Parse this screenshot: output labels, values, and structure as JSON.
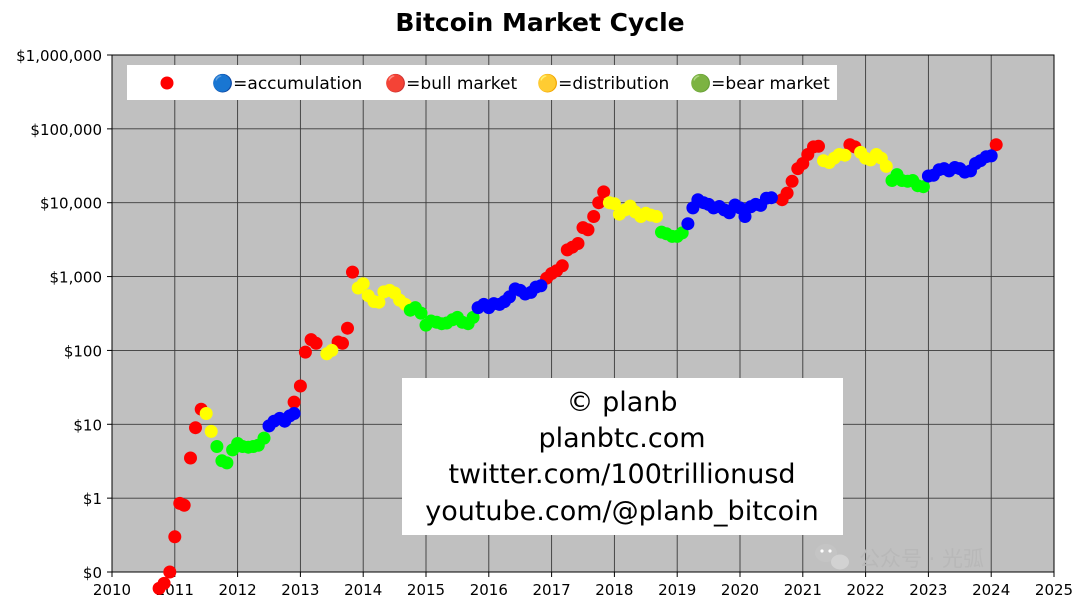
{
  "chart_data": {
    "type": "scatter",
    "title": "Bitcoin Market Cycle",
    "xlabel": "",
    "ylabel": "",
    "x_scale": "linear",
    "y_scale": "log",
    "xlim": [
      2010,
      2025
    ],
    "ylim": [
      0.1,
      1000000
    ],
    "grid": true,
    "x_ticks": [
      {
        "value": 2010,
        "label": "2010"
      },
      {
        "value": 2011,
        "label": "2011"
      },
      {
        "value": 2012,
        "label": "2012"
      },
      {
        "value": 2013,
        "label": "2013"
      },
      {
        "value": 2014,
        "label": "2014"
      },
      {
        "value": 2015,
        "label": "2015"
      },
      {
        "value": 2016,
        "label": "2016"
      },
      {
        "value": 2017,
        "label": "2017"
      },
      {
        "value": 2018,
        "label": "2018"
      },
      {
        "value": 2019,
        "label": "2019"
      },
      {
        "value": 2020,
        "label": "2020"
      },
      {
        "value": 2021,
        "label": "2021"
      },
      {
        "value": 2022,
        "label": "2022"
      },
      {
        "value": 2023,
        "label": "2023"
      },
      {
        "value": 2024,
        "label": "2024"
      },
      {
        "value": 2025,
        "label": "2025"
      }
    ],
    "y_ticks": [
      {
        "value": 0.1,
        "label": "$0"
      },
      {
        "value": 1,
        "label": "$1"
      },
      {
        "value": 10,
        "label": "$10"
      },
      {
        "value": 100,
        "label": "$100"
      },
      {
        "value": 1000,
        "label": "$1,000"
      },
      {
        "value": 10000,
        "label": "$10,000"
      },
      {
        "value": 100000,
        "label": "$100,000"
      },
      {
        "value": 1000000,
        "label": "$1,000,000"
      }
    ],
    "legend": {
      "placement": "top-left",
      "entries": [
        {
          "label": "",
          "color": "#ff0000"
        },
        {
          "label": "🔵=accumulation",
          "color": "#0000ff"
        },
        {
          "label": "🔴=bull market",
          "color": "#ff0000"
        },
        {
          "label": "🟡=distribution",
          "color": "#ffff00"
        },
        {
          "label": "🟢=bear market",
          "color": "#00ff00"
        }
      ]
    },
    "series": [
      {
        "phase": "bull",
        "color": "#ff0000",
        "points": [
          [
            2010.75,
            0.06
          ],
          [
            2010.83,
            0.07
          ],
          [
            2010.92,
            0.1
          ],
          [
            2011.0,
            0.3
          ],
          [
            2011.08,
            0.85
          ],
          [
            2011.15,
            0.8
          ],
          [
            2011.25,
            3.5
          ],
          [
            2011.33,
            9
          ],
          [
            2011.42,
            16
          ],
          [
            2012.9,
            20
          ],
          [
            2013.0,
            33
          ],
          [
            2013.08,
            95
          ],
          [
            2013.17,
            140
          ],
          [
            2013.25,
            125
          ],
          [
            2013.6,
            130
          ],
          [
            2013.67,
            125
          ],
          [
            2013.75,
            200
          ],
          [
            2013.83,
            1150
          ],
          [
            2016.92,
            950
          ],
          [
            2017.0,
            1100
          ],
          [
            2017.08,
            1200
          ],
          [
            2017.17,
            1400
          ],
          [
            2017.25,
            2300
          ],
          [
            2017.33,
            2500
          ],
          [
            2017.42,
            2800
          ],
          [
            2017.5,
            4600
          ],
          [
            2017.58,
            4300
          ],
          [
            2017.67,
            6500
          ],
          [
            2017.75,
            10000
          ],
          [
            2017.83,
            14000
          ],
          [
            2020.67,
            11000
          ],
          [
            2020.75,
            13500
          ],
          [
            2020.83,
            19500
          ],
          [
            2020.92,
            29000
          ],
          [
            2021.0,
            34000
          ],
          [
            2021.08,
            45000
          ],
          [
            2021.17,
            57000
          ],
          [
            2021.25,
            58000
          ],
          [
            2021.75,
            61000
          ],
          [
            2021.83,
            57000
          ],
          [
            2024.08,
            61000
          ]
        ]
      },
      {
        "phase": "distribution",
        "color": "#ffff00",
        "points": [
          [
            2011.5,
            14
          ],
          [
            2011.58,
            8
          ],
          [
            2013.42,
            90
          ],
          [
            2013.5,
            100
          ],
          [
            2013.92,
            700
          ],
          [
            2014.0,
            800
          ],
          [
            2014.08,
            550
          ],
          [
            2014.17,
            460
          ],
          [
            2014.25,
            450
          ],
          [
            2014.33,
            620
          ],
          [
            2014.42,
            650
          ],
          [
            2014.5,
            600
          ],
          [
            2014.58,
            480
          ],
          [
            2014.67,
            420
          ],
          [
            2017.92,
            10000
          ],
          [
            2018.0,
            9700
          ],
          [
            2018.08,
            7000
          ],
          [
            2018.17,
            8000
          ],
          [
            2018.25,
            9000
          ],
          [
            2018.33,
            7500
          ],
          [
            2018.42,
            6500
          ],
          [
            2018.5,
            7200
          ],
          [
            2018.58,
            6800
          ],
          [
            2018.67,
            6500
          ],
          [
            2021.33,
            37000
          ],
          [
            2021.42,
            35000
          ],
          [
            2021.5,
            40000
          ],
          [
            2021.58,
            45000
          ],
          [
            2021.67,
            44000
          ],
          [
            2021.92,
            48000
          ],
          [
            2022.0,
            40000
          ],
          [
            2022.08,
            38000
          ],
          [
            2022.17,
            45000
          ],
          [
            2022.25,
            40000
          ],
          [
            2022.33,
            31000
          ]
        ]
      },
      {
        "phase": "bear",
        "color": "#00ff00",
        "points": [
          [
            2011.67,
            5
          ],
          [
            2011.75,
            3.2
          ],
          [
            2011.83,
            3
          ],
          [
            2011.92,
            4.5
          ],
          [
            2012.0,
            5.5
          ],
          [
            2012.08,
            5
          ],
          [
            2012.17,
            4.9
          ],
          [
            2012.25,
            5
          ],
          [
            2012.33,
            5.2
          ],
          [
            2012.42,
            6.5
          ],
          [
            2014.75,
            350
          ],
          [
            2014.83,
            380
          ],
          [
            2014.92,
            320
          ],
          [
            2015.0,
            220
          ],
          [
            2015.08,
            250
          ],
          [
            2015.17,
            240
          ],
          [
            2015.25,
            230
          ],
          [
            2015.33,
            235
          ],
          [
            2015.42,
            260
          ],
          [
            2015.5,
            280
          ],
          [
            2015.58,
            240
          ],
          [
            2015.67,
            230
          ],
          [
            2015.75,
            280
          ],
          [
            2018.75,
            4000
          ],
          [
            2018.83,
            3800
          ],
          [
            2018.92,
            3500
          ],
          [
            2019.0,
            3500
          ],
          [
            2019.08,
            3900
          ],
          [
            2022.42,
            20000
          ],
          [
            2022.5,
            24000
          ],
          [
            2022.58,
            20000
          ],
          [
            2022.67,
            19500
          ],
          [
            2022.75,
            20000
          ],
          [
            2022.83,
            17000
          ],
          [
            2022.92,
            16500
          ]
        ]
      },
      {
        "phase": "accumulation",
        "color": "#0000ff",
        "points": [
          [
            2012.5,
            9.5
          ],
          [
            2012.58,
            11
          ],
          [
            2012.67,
            12
          ],
          [
            2012.75,
            11
          ],
          [
            2012.83,
            13
          ],
          [
            2012.9,
            14
          ],
          [
            2015.83,
            380
          ],
          [
            2015.92,
            420
          ],
          [
            2016.0,
            380
          ],
          [
            2016.08,
            430
          ],
          [
            2016.17,
            420
          ],
          [
            2016.25,
            460
          ],
          [
            2016.33,
            530
          ],
          [
            2016.42,
            680
          ],
          [
            2016.5,
            650
          ],
          [
            2016.58,
            580
          ],
          [
            2016.67,
            610
          ],
          [
            2016.75,
            720
          ],
          [
            2016.83,
            750
          ],
          [
            2019.17,
            5200
          ],
          [
            2019.25,
            8500
          ],
          [
            2019.33,
            11000
          ],
          [
            2019.42,
            10000
          ],
          [
            2019.5,
            9500
          ],
          [
            2019.58,
            8500
          ],
          [
            2019.67,
            8900
          ],
          [
            2019.75,
            8000
          ],
          [
            2019.83,
            7300
          ],
          [
            2019.92,
            9300
          ],
          [
            2020.0,
            8500
          ],
          [
            2020.08,
            6500
          ],
          [
            2020.17,
            8800
          ],
          [
            2020.25,
            9500
          ],
          [
            2020.33,
            9200
          ],
          [
            2020.42,
            11500
          ],
          [
            2020.5,
            11700
          ],
          [
            2023.0,
            23000
          ],
          [
            2023.08,
            23500
          ],
          [
            2023.17,
            28000
          ],
          [
            2023.25,
            29000
          ],
          [
            2023.33,
            27000
          ],
          [
            2023.42,
            30000
          ],
          [
            2023.5,
            29000
          ],
          [
            2023.58,
            26000
          ],
          [
            2023.67,
            27000
          ],
          [
            2023.75,
            34000
          ],
          [
            2023.83,
            37000
          ],
          [
            2023.92,
            42000
          ],
          [
            2024.0,
            43000
          ]
        ]
      }
    ],
    "annotation_lines": [
      "© planb",
      "planbtc.com",
      "twitter.com/100trillionusd",
      "youtube.com/@planb_bitcoin"
    ]
  },
  "watermark": "公众号 · 光弧"
}
